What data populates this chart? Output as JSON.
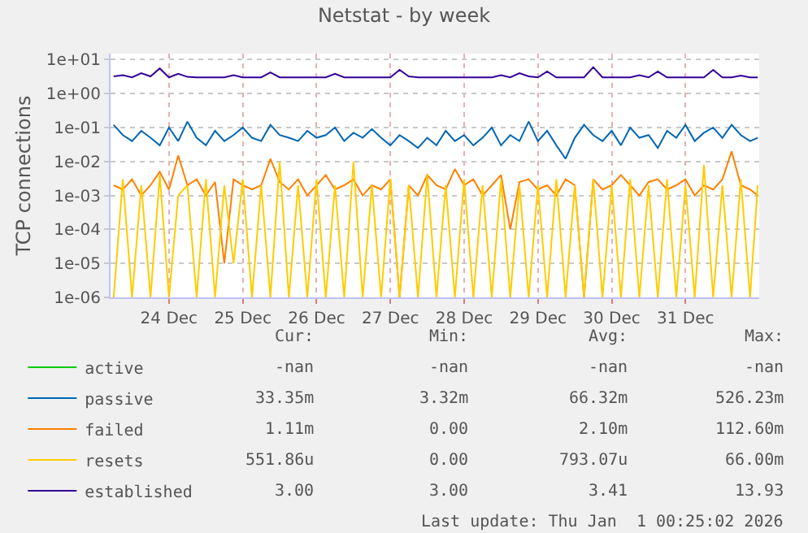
{
  "chart_data": {
    "type": "line",
    "title": "Netstat - by week",
    "ylabel": "TCP connections",
    "log": "y",
    "grid": true,
    "legend": "bottom left",
    "marker": "none",
    "line_style": "solid",
    "xlim": [
      "--12-23T05:00",
      "--12-31T23:59"
    ],
    "xticks": [
      {
        "value": "--12-24",
        "label": "24 Dec"
      },
      {
        "value": "--12-25",
        "label": "25 Dec"
      },
      {
        "value": "--12-26",
        "label": "26 Dec"
      },
      {
        "value": "--12-27",
        "label": "27 Dec"
      },
      {
        "value": "--12-28",
        "label": "28 Dec"
      },
      {
        "value": "--12-29",
        "label": "29 Dec"
      },
      {
        "value": "--12-30",
        "label": "30 Dec"
      },
      {
        "value": "--12-31",
        "label": "31 Dec"
      }
    ],
    "ylim": [
      1e-06,
      15
    ],
    "yticks": [
      {
        "value": 10,
        "label": "1e+01"
      },
      {
        "value": 1,
        "label": "1e+00"
      },
      {
        "value": 0.1,
        "label": "1e-01"
      },
      {
        "value": 0.01,
        "label": "1e-02"
      },
      {
        "value": 0.001,
        "label": "1e-03"
      },
      {
        "value": 0.0001,
        "label": "1e-04"
      },
      {
        "value": 1e-05,
        "label": "1e-05"
      },
      {
        "value": 1e-06,
        "label": "1e-06"
      }
    ],
    "x": [
      "--12-23T06:00",
      "--12-23T09:00",
      "--12-23T12:00",
      "--12-23T15:00",
      "--12-23T18:00",
      "--12-23T21:00",
      "--12-24T00:00",
      "--12-24T03:00",
      "--12-24T06:00",
      "--12-24T09:00",
      "--12-24T12:00",
      "--12-24T15:00",
      "--12-24T18:00",
      "--12-24T21:00",
      "--12-25T00:00",
      "--12-25T03:00",
      "--12-25T06:00",
      "--12-25T09:00",
      "--12-25T12:00",
      "--12-25T15:00",
      "--12-25T18:00",
      "--12-25T21:00",
      "--12-26T00:00",
      "--12-26T03:00",
      "--12-26T06:00",
      "--12-26T09:00",
      "--12-26T12:00",
      "--12-26T15:00",
      "--12-26T18:00",
      "--12-26T21:00",
      "--12-27T00:00",
      "--12-27T03:00",
      "--12-27T06:00",
      "--12-27T09:00",
      "--12-27T12:00",
      "--12-27T15:00",
      "--12-27T18:00",
      "--12-27T21:00",
      "--12-28T00:00",
      "--12-28T03:00",
      "--12-28T06:00",
      "--12-28T09:00",
      "--12-28T12:00",
      "--12-28T15:00",
      "--12-28T18:00",
      "--12-28T21:00",
      "--12-29T00:00",
      "--12-29T03:00",
      "--12-29T06:00",
      "--12-29T09:00",
      "--12-29T12:00",
      "--12-29T15:00",
      "--12-29T18:00",
      "--12-29T21:00",
      "--12-30T00:00",
      "--12-30T03:00",
      "--12-30T06:00",
      "--12-30T09:00",
      "--12-30T12:00",
      "--12-30T15:00",
      "--12-30T18:00",
      "--12-30T21:00",
      "--12-31T00:00",
      "--12-31T03:00",
      "--12-31T06:00",
      "--12-31T09:00",
      "--12-31T12:00",
      "--12-31T15:00",
      "--12-31T18:00",
      "--12-31T21:00",
      "--12-31T23:30"
    ],
    "series": [
      {
        "name": "active",
        "color": "#00cc00",
        "values": [
          null,
          null,
          null,
          null,
          null,
          null,
          null,
          null,
          null,
          null,
          null,
          null,
          null,
          null,
          null,
          null,
          null,
          null,
          null,
          null,
          null,
          null,
          null,
          null,
          null,
          null,
          null,
          null,
          null,
          null,
          null,
          null,
          null,
          null,
          null,
          null,
          null,
          null,
          null,
          null,
          null,
          null,
          null,
          null,
          null,
          null,
          null,
          null,
          null,
          null,
          null,
          null,
          null,
          null,
          null,
          null,
          null,
          null,
          null,
          null,
          null,
          null,
          null,
          null,
          null,
          null,
          null,
          null,
          null,
          null,
          null
        ]
      },
      {
        "name": "passive",
        "color": "#0066b3",
        "values": [
          0.12,
          0.06,
          0.04,
          0.08,
          0.05,
          0.03,
          0.1,
          0.04,
          0.15,
          0.05,
          0.03,
          0.08,
          0.04,
          0.06,
          0.1,
          0.05,
          0.04,
          0.12,
          0.06,
          0.05,
          0.04,
          0.08,
          0.05,
          0.06,
          0.1,
          0.04,
          0.07,
          0.05,
          0.09,
          0.05,
          0.03,
          0.06,
          0.04,
          0.025,
          0.05,
          0.03,
          0.08,
          0.04,
          0.06,
          0.03,
          0.05,
          0.1,
          0.03,
          0.06,
          0.04,
          0.15,
          0.04,
          0.08,
          0.03,
          0.012,
          0.05,
          0.12,
          0.06,
          0.04,
          0.08,
          0.03,
          0.1,
          0.05,
          0.06,
          0.025,
          0.08,
          0.05,
          0.12,
          0.04,
          0.07,
          0.1,
          0.05,
          0.12,
          0.06,
          0.04,
          0.05
        ]
      },
      {
        "name": "failed",
        "color": "#ff8000",
        "values": [
          0.002,
          0.0015,
          0.003,
          0.001,
          0.002,
          0.005,
          0.0015,
          0.015,
          0.002,
          0.003,
          0.001,
          0.0025,
          1e-05,
          0.003,
          0.002,
          0.0015,
          0.002,
          0.012,
          0.0025,
          0.0015,
          0.003,
          0.001,
          0.002,
          0.004,
          0.0015,
          0.002,
          0.003,
          0.001,
          0.002,
          0.0015,
          0.003,
          1e-06,
          0.002,
          0.001,
          0.004,
          0.002,
          0.0015,
          0.006,
          0.002,
          0.003,
          0.001,
          0.002,
          0.004,
          0.0001,
          0.0025,
          0.003,
          0.0015,
          0.002,
          0.001,
          0.003,
          0.002,
          1e-06,
          0.003,
          0.0015,
          0.002,
          0.004,
          0.002,
          0.001,
          0.0025,
          0.003,
          0.0015,
          0.002,
          0.003,
          0.001,
          0.002,
          0.0015,
          0.003,
          0.02,
          0.002,
          0.0015,
          0.001
        ]
      },
      {
        "name": "resets",
        "color": "#ffcc00",
        "values": [
          1e-06,
          0.003,
          1e-06,
          0.002,
          1e-06,
          0.004,
          1e-06,
          0.001,
          0.002,
          1e-06,
          0.003,
          1e-06,
          0.002,
          1e-05,
          0.003,
          1e-06,
          0.002,
          1e-06,
          0.01,
          1e-06,
          0.002,
          1e-06,
          0.003,
          1e-06,
          0.002,
          1e-06,
          0.01,
          1e-06,
          0.002,
          1e-06,
          0.003,
          1e-06,
          0.002,
          1e-06,
          0.004,
          1e-06,
          0.002,
          1e-06,
          0.003,
          1e-06,
          0.002,
          1e-06,
          0.003,
          1e-06,
          0.002,
          1e-06,
          0.002,
          1e-06,
          0.003,
          1e-06,
          0.002,
          1e-06,
          0.003,
          1e-06,
          0.002,
          1e-06,
          0.003,
          1e-06,
          0.002,
          1e-06,
          0.003,
          1e-06,
          0.002,
          1e-06,
          0.008,
          1e-06,
          0.002,
          1e-06,
          0.003,
          1e-06,
          0.002
        ]
      },
      {
        "name": "established",
        "color": "#330099",
        "values": [
          3.2,
          3.5,
          3.0,
          4.0,
          3.2,
          5.5,
          3.0,
          3.8,
          3.1,
          3.0,
          3.0,
          3.0,
          3.0,
          3.5,
          3.0,
          3.0,
          3.0,
          4.2,
          3.0,
          3.0,
          3.0,
          3.0,
          3.0,
          3.0,
          3.8,
          3.0,
          3.0,
          3.0,
          3.0,
          3.0,
          3.0,
          5.0,
          3.2,
          3.0,
          3.0,
          3.0,
          3.0,
          3.0,
          3.0,
          3.0,
          3.0,
          3.0,
          3.5,
          3.0,
          4.0,
          3.2,
          3.0,
          4.5,
          3.0,
          3.0,
          3.0,
          3.0,
          6.0,
          3.0,
          3.0,
          3.0,
          3.0,
          3.5,
          3.0,
          4.5,
          3.0,
          3.0,
          3.0,
          3.0,
          3.0,
          5.0,
          3.0,
          3.0,
          3.4,
          3.0,
          3.0
        ]
      }
    ],
    "annotations": [
      "Cur:",
      "Min:",
      "Avg:",
      "Max:",
      "-nan",
      "-nan",
      "-nan",
      "-nan",
      "33.35m",
      "3.32m",
      "66.32m",
      "526.23m",
      "1.11m",
      "0.00",
      "2.10m",
      "112.60m",
      "551.86u",
      "0.00",
      "793.07u",
      "66.00m",
      "3.00",
      "3.00",
      "3.41",
      "13.93",
      "Last update: Thu Jan  1 00:25:02 2026"
    ]
  }
}
